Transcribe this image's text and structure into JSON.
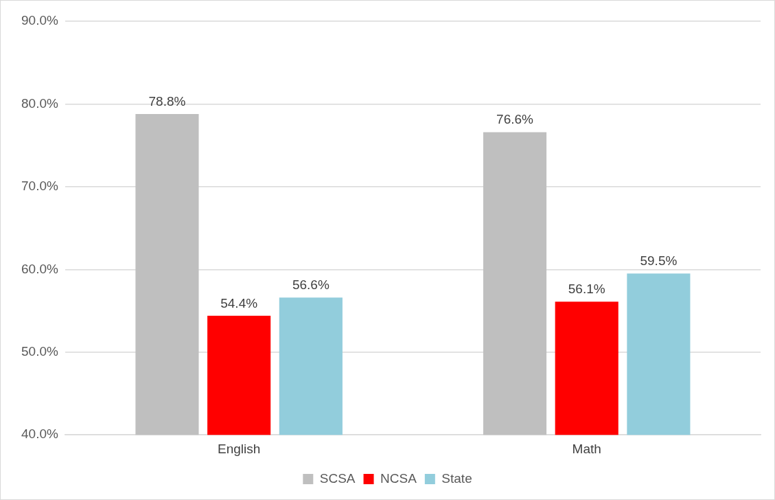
{
  "chart_data": {
    "type": "bar",
    "categories": [
      "English",
      "Math"
    ],
    "series": [
      {
        "name": "SCSA",
        "color": "#bfbfbf",
        "values": [
          78.8,
          76.6
        ],
        "value_labels": [
          "78.8%",
          "76.6%"
        ]
      },
      {
        "name": "NCSA",
        "color": "#ff0000",
        "values": [
          54.4,
          56.1
        ],
        "value_labels": [
          "54.4%",
          "56.1%"
        ]
      },
      {
        "name": "State",
        "color": "#92cddc",
        "values": [
          56.6,
          59.5
        ],
        "value_labels": [
          "56.6%",
          "59.5%"
        ]
      }
    ],
    "ylim": [
      40,
      90
    ],
    "yticks": [
      {
        "value": 40,
        "label": "40.0%"
      },
      {
        "value": 50,
        "label": "50.0%"
      },
      {
        "value": 60,
        "label": "60.0%"
      },
      {
        "value": 70,
        "label": "70.0%"
      },
      {
        "value": 80,
        "label": "80.0%"
      },
      {
        "value": 90,
        "label": "90.0%"
      }
    ],
    "grid": "y",
    "legend": "bottom"
  }
}
